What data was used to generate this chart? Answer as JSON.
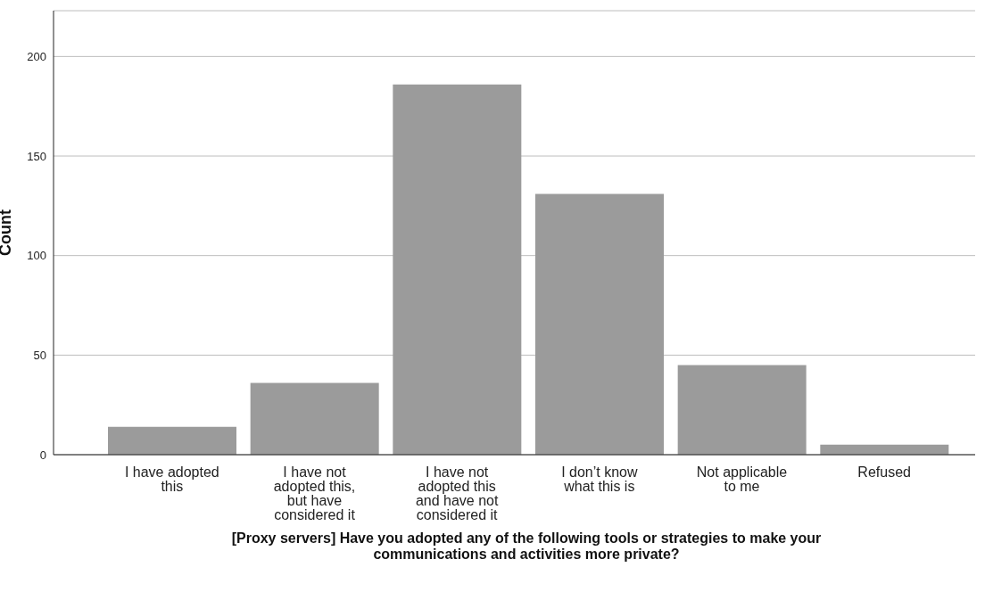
{
  "chart_data": {
    "type": "bar",
    "xlabel": "[Proxy servers] Have you adopted any of the following tools or strategies to make your communications and activities more private?",
    "ylabel": "Count",
    "categories": [
      "I have adopted this",
      "I have not adopted this, but have considered it",
      "I have not adopted this and have not considered it",
      "I don’t know what this is",
      "Not applicable to me",
      "Refused"
    ],
    "values": [
      14,
      36,
      186,
      131,
      45,
      5
    ],
    "color": "#9b9b9b",
    "ylim": [
      0,
      223
    ],
    "yticks": [
      0,
      50,
      100,
      150,
      200
    ],
    "grid": "y"
  }
}
